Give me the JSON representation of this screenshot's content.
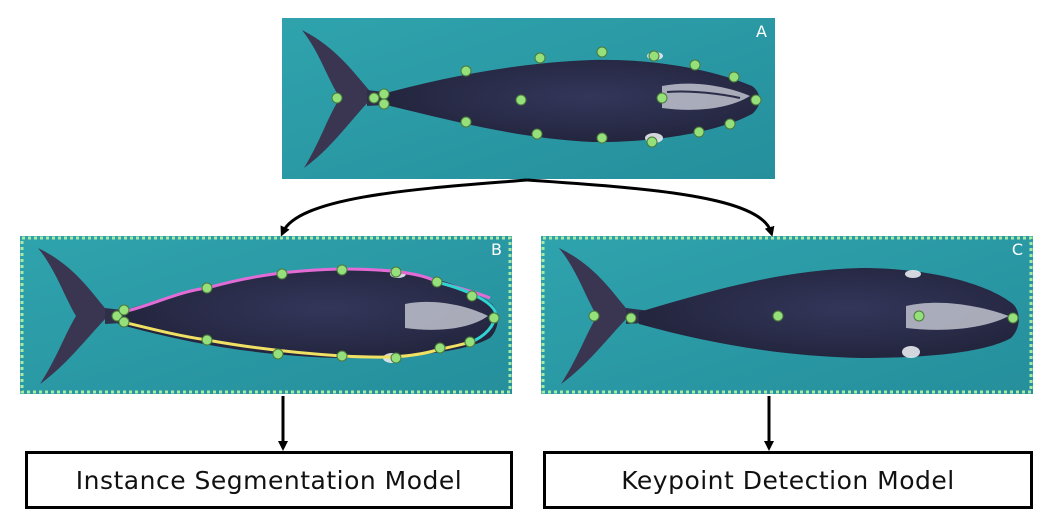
{
  "panels": {
    "a": {
      "letter": "A"
    },
    "b": {
      "letter": "B"
    },
    "c": {
      "letter": "C"
    }
  },
  "models": {
    "segmentation": "Instance Segmentation Model",
    "keypoint": "Keypoint Detection Model"
  },
  "colors": {
    "water": "#2a9aa6",
    "whale": "#2a2d48",
    "keypoint": "#95e07a",
    "dotted_border": "#a8eaa4",
    "outline_top": "#e26bd6",
    "outline_bottom": "#f0e063",
    "outline_head": "#2fd3d0",
    "arrow": "#000000"
  }
}
